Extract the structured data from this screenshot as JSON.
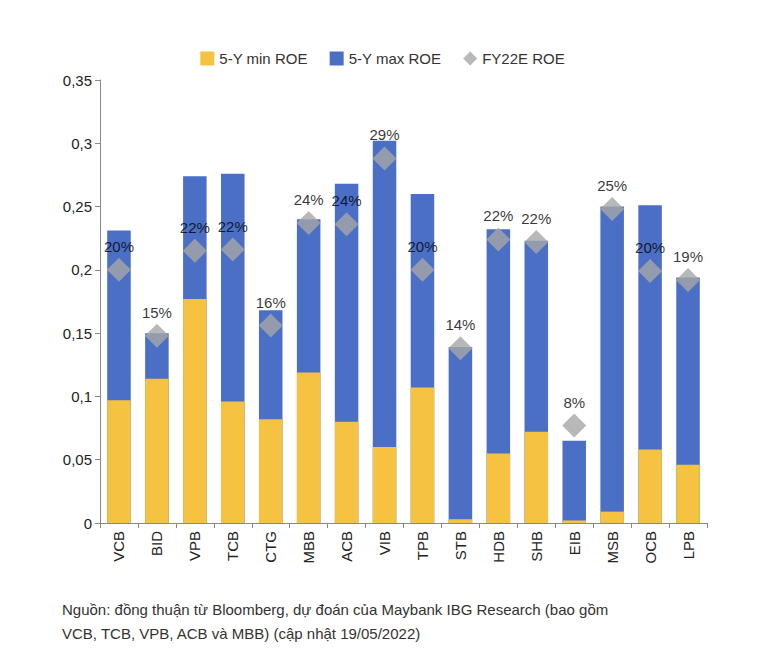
{
  "chart_data": {
    "type": "bar",
    "categories": [
      "VCB",
      "BID",
      "VPB",
      "TCB",
      "CTG",
      "MBB",
      "ACB",
      "VIB",
      "TPB",
      "STB",
      "HDB",
      "SHB",
      "EIB",
      "MSB",
      "OCB",
      "LPB"
    ],
    "series": [
      {
        "name": "5-Y min ROE",
        "color": "#F5C242",
        "values": [
          0.097,
          0.114,
          0.177,
          0.096,
          0.082,
          0.119,
          0.08,
          0.06,
          0.107,
          0.003,
          0.055,
          0.072,
          0.002,
          0.009,
          0.058,
          0.046
        ]
      },
      {
        "name": "5-Y max ROE",
        "color": "#4A6FC4",
        "values": [
          0.231,
          0.15,
          0.274,
          0.276,
          0.168,
          0.24,
          0.268,
          0.302,
          0.26,
          0.139,
          0.232,
          0.223,
          0.065,
          0.25,
          0.251,
          0.194
        ]
      },
      {
        "name": "FY22E ROE",
        "type": "scatter",
        "marker": "diamond",
        "color": "#A6A6A6",
        "data_labels": true,
        "values": [
          0.2,
          0.148,
          0.215,
          0.216,
          0.156,
          0.237,
          0.236,
          0.288,
          0.2,
          0.138,
          0.224,
          0.222,
          0.077,
          0.248,
          0.199,
          0.192
        ],
        "value_labels": [
          "20%",
          "15%",
          "22%",
          "22%",
          "16%",
          "24%",
          "24%",
          "29%",
          "20%",
          "14%",
          "22%",
          "22%",
          "8%",
          "25%",
          "20%",
          "19%"
        ]
      }
    ],
    "stacked": false,
    "ylim": [
      0,
      0.35
    ],
    "yticks": [
      0,
      {
        "value": 0.05,
        "label": "0,05"
      },
      {
        "value": 0.1,
        "label": "0,1"
      },
      {
        "value": 0.15,
        "label": "0,15"
      },
      {
        "value": 0.2,
        "label": "0,2"
      },
      {
        "value": 0.25,
        "label": "0,25"
      },
      {
        "value": 0.3,
        "label": "0,3"
      },
      {
        "value": 0.35,
        "label": "0,35"
      }
    ],
    "grid": false,
    "legend": "top",
    "annotations": [
      "Nguồn: đồng thuận từ Bloomberg, dự đoán của Maybank IBG Research (bao gồm",
      "VCB, TCB, VPB, ACB và MBB) (cập nhật 19/05/2022)"
    ]
  }
}
